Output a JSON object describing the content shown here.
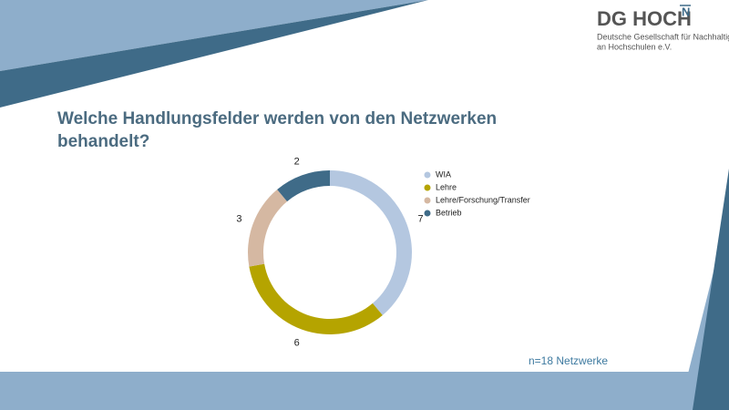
{
  "logo": {
    "name": "DG HOCH",
    "mark": "N",
    "line1": "Deutsche Gesellschaft für Nachhaltigkeit",
    "line2": "an Hochschulen e.V."
  },
  "chart_data": {
    "type": "donut",
    "title": "Welche Handlungsfelder werden von den Netzwerken behandelt?",
    "categories": [
      "WIA",
      "Lehre",
      "Lehre/Forschung/Transfer",
      "Betrieb"
    ],
    "values": [
      7,
      6,
      3,
      2
    ],
    "colors": [
      "#b4c7e0",
      "#b5a400",
      "#d5b8a2",
      "#3f6b88"
    ],
    "annotation": "n=18 Netzwerke"
  }
}
